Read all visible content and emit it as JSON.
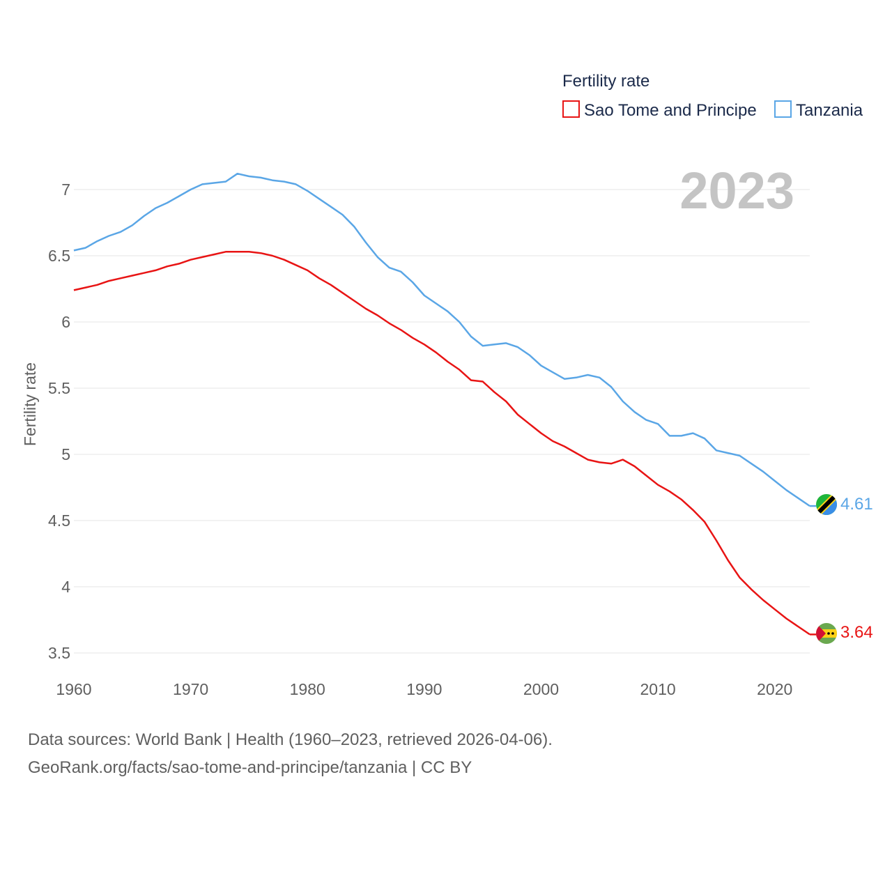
{
  "legend": {
    "title": "Fertility rate",
    "items": [
      {
        "label": "Sao Tome and Principe",
        "color": "#e81414"
      },
      {
        "label": "Tanzania",
        "color": "#5aa6e6"
      }
    ]
  },
  "year_label": "2023",
  "source": {
    "line1": "Data sources: World Bank | Health (1960–2023, retrieved 2026-04-06).",
    "line2": "GeoRank.org/facts/sao-tome-and-principe/tanzania | CC BY"
  },
  "chart_data": {
    "type": "line",
    "title": "Fertility rate",
    "xlabel": "",
    "ylabel": "Fertility rate",
    "xlim": [
      1960,
      2023
    ],
    "ylim": [
      3.5,
      7
    ],
    "grid": true,
    "legend_position": "top-right",
    "x_ticks": [
      "1960",
      "1970",
      "1980",
      "1990",
      "2000",
      "2010",
      "2020"
    ],
    "y_ticks": [
      "3.5",
      "4",
      "4.5",
      "5",
      "5.5",
      "6",
      "6.5",
      "7"
    ],
    "x": [
      1960,
      1961,
      1962,
      1963,
      1964,
      1965,
      1966,
      1967,
      1968,
      1969,
      1970,
      1971,
      1972,
      1973,
      1974,
      1975,
      1976,
      1977,
      1978,
      1979,
      1980,
      1981,
      1982,
      1983,
      1984,
      1985,
      1986,
      1987,
      1988,
      1989,
      1990,
      1991,
      1992,
      1993,
      1994,
      1995,
      1996,
      1997,
      1998,
      1999,
      2000,
      2001,
      2002,
      2003,
      2004,
      2005,
      2006,
      2007,
      2008,
      2009,
      2010,
      2011,
      2012,
      2013,
      2014,
      2015,
      2016,
      2017,
      2018,
      2019,
      2020,
      2021,
      2022,
      2023
    ],
    "series": [
      {
        "name": "Sao Tome and Principe",
        "color": "#e81414",
        "end_label": "3.64",
        "values": [
          6.24,
          6.26,
          6.28,
          6.31,
          6.33,
          6.35,
          6.37,
          6.39,
          6.42,
          6.44,
          6.47,
          6.49,
          6.51,
          6.53,
          6.53,
          6.53,
          6.52,
          6.5,
          6.47,
          6.43,
          6.39,
          6.33,
          6.28,
          6.22,
          6.16,
          6.1,
          6.05,
          5.99,
          5.94,
          5.88,
          5.83,
          5.77,
          5.7,
          5.64,
          5.56,
          5.55,
          5.47,
          5.4,
          5.3,
          5.23,
          5.16,
          5.1,
          5.06,
          5.01,
          4.96,
          4.94,
          4.93,
          4.96,
          4.91,
          4.84,
          4.77,
          4.72,
          4.66,
          4.58,
          4.49,
          4.35,
          4.2,
          4.07,
          3.98,
          3.9,
          3.83,
          3.76,
          3.7,
          3.64
        ]
      },
      {
        "name": "Tanzania",
        "color": "#5aa6e6",
        "end_label": "4.61",
        "values": [
          6.54,
          6.56,
          6.61,
          6.65,
          6.68,
          6.73,
          6.8,
          6.86,
          6.9,
          6.95,
          7.0,
          7.04,
          7.05,
          7.06,
          7.12,
          7.1,
          7.09,
          7.07,
          7.06,
          7.04,
          6.99,
          6.93,
          6.87,
          6.81,
          6.72,
          6.6,
          6.49,
          6.41,
          6.38,
          6.3,
          6.2,
          6.14,
          6.08,
          6.0,
          5.89,
          5.82,
          5.83,
          5.84,
          5.81,
          5.75,
          5.67,
          5.62,
          5.57,
          5.58,
          5.6,
          5.58,
          5.51,
          5.4,
          5.32,
          5.26,
          5.23,
          5.14,
          5.14,
          5.16,
          5.12,
          5.03,
          5.01,
          4.99,
          4.93,
          4.87,
          4.8,
          4.73,
          4.67,
          4.61
        ]
      }
    ]
  }
}
